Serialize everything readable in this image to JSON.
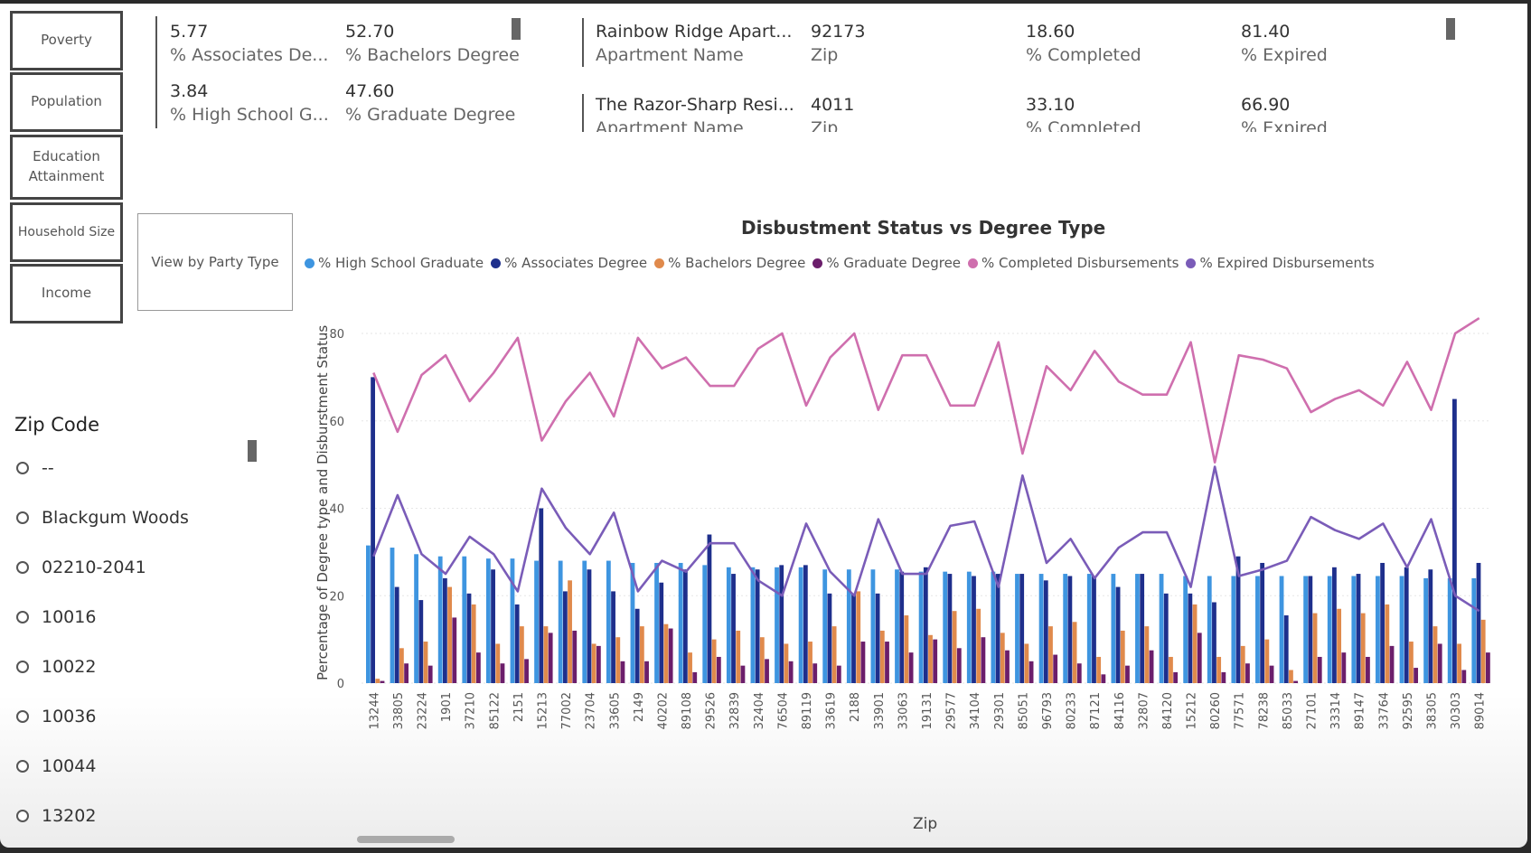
{
  "nav_buttons": [
    {
      "label": "Poverty"
    },
    {
      "label": "Population"
    },
    {
      "label": "Education Attainment"
    },
    {
      "label": "Household Size"
    },
    {
      "label": "Income"
    }
  ],
  "party_button": {
    "label": "View by Party Type"
  },
  "edu_card": [
    {
      "value": "5.77",
      "label": "% Associates De..."
    },
    {
      "value": "52.70",
      "label": "% Bachelors Degree"
    },
    {
      "value": "3.84",
      "label": "% High School G..."
    },
    {
      "value": "47.60",
      "label": "% Graduate Degree"
    }
  ],
  "apt_card": {
    "rows": [
      {
        "name": "Rainbow Ridge Apart...",
        "name_label": "Apartment Name",
        "zip": "92173",
        "zip_label": "Zip",
        "completed": "18.60",
        "completed_label": "% Completed",
        "expired": "81.40",
        "expired_label": "% Expired"
      },
      {
        "name": "The Razor-Sharp Resi...",
        "name_label": "Apartment Name",
        "zip": "4011",
        "zip_label": "Zip",
        "completed": "33.10",
        "completed_label": "% Completed",
        "expired": "66.90",
        "expired_label": "% Expired"
      }
    ]
  },
  "zip_filter": {
    "title": "Zip Code",
    "items": [
      "--",
      "Blackgum Woods",
      "02210-2041",
      "10016",
      "10022",
      "10036",
      "10044",
      "13202"
    ]
  },
  "colors": {
    "hs": "#3e95e0",
    "assoc": "#1e2f8c",
    "bach": "#e08a4c",
    "grad": "#6b1e6b",
    "completed": "#cf6fae",
    "expired": "#7a5cb8"
  },
  "chart_data": {
    "type": "bar+line",
    "title": "Disbustment Status vs Degree Type",
    "xlabel": "Zip",
    "ylabel": "Percentage of Degree type and Disburstment Status",
    "ylim": [
      0,
      80
    ],
    "yticks": [
      0,
      20,
      40,
      60,
      80
    ],
    "categories": [
      "13244",
      "33805",
      "23224",
      "1901",
      "37210",
      "85122",
      "2151",
      "15213",
      "77002",
      "23704",
      "33605",
      "2149",
      "40202",
      "89108",
      "29526",
      "32839",
      "32404",
      "76504",
      "89119",
      "33619",
      "2188",
      "33901",
      "33063",
      "19131",
      "29577",
      "34104",
      "29301",
      "85051",
      "96793",
      "80233",
      "87121",
      "84116",
      "32807",
      "84120",
      "15212",
      "80260",
      "77571",
      "78238",
      "85033",
      "27101",
      "33314",
      "89147",
      "33764",
      "92595",
      "38305",
      "30303",
      "89014"
    ],
    "series": [
      {
        "name": "% High School Graduate",
        "kind": "bar",
        "values": [
          31.5,
          31,
          29.5,
          29,
          29,
          28.5,
          28.5,
          28,
          28,
          28,
          28,
          27.5,
          27.5,
          27.5,
          27,
          26.5,
          26.5,
          26.5,
          26.5,
          26,
          26,
          26,
          26,
          25.5,
          25.5,
          25.5,
          25.5,
          25,
          25,
          25,
          25,
          25,
          25,
          25,
          24.5,
          24.5,
          24.5,
          24.5,
          24.5,
          24.5,
          24.5,
          24.5,
          24.5,
          24.5,
          24,
          24,
          24
        ]
      },
      {
        "name": "% Associates Degree",
        "kind": "bar",
        "values": [
          70,
          22,
          19,
          24,
          20.5,
          26,
          18,
          40,
          21,
          26,
          21,
          17,
          23,
          26,
          34,
          25,
          26,
          27,
          27,
          20.5,
          20.5,
          20.5,
          25.5,
          26.5,
          25,
          24.5,
          25,
          25,
          23.5,
          24.5,
          24.5,
          22,
          25,
          20.5,
          20.5,
          18.5,
          29,
          27.5,
          15.5,
          24.5,
          26.5,
          25,
          27.5,
          26.5,
          26,
          65,
          27.5
        ]
      },
      {
        "name": "% Bachelors Degree",
        "kind": "bar",
        "values": [
          1,
          8,
          9.5,
          22,
          18,
          9,
          13,
          13,
          23.5,
          9,
          10.5,
          13,
          13.5,
          7,
          10,
          12,
          10.5,
          9,
          9.5,
          13,
          21,
          12,
          15.5,
          11,
          16.5,
          17,
          11.5,
          9,
          13,
          14,
          6,
          12,
          13,
          6,
          18,
          6,
          8.5,
          10,
          3,
          16,
          17,
          16,
          18,
          9.5,
          13,
          9,
          14.5
        ]
      },
      {
        "name": "% Graduate Degree",
        "kind": "bar",
        "values": [
          0.5,
          4.5,
          4,
          15,
          7,
          4.5,
          5.5,
          11.5,
          12,
          8.5,
          5,
          5,
          12.5,
          2.5,
          6,
          4,
          5.5,
          5,
          4.5,
          4,
          9.5,
          9.5,
          7,
          10,
          8,
          10.5,
          7.5,
          5,
          6.5,
          4.5,
          2,
          4,
          7.5,
          2.5,
          11.5,
          2.5,
          4.5,
          4,
          0.5,
          6,
          7,
          6,
          8.5,
          3.5,
          9,
          3,
          7
        ]
      },
      {
        "name": "% Completed Disbursements",
        "kind": "line",
        "values": [
          71,
          57.5,
          70.5,
          75,
          64.5,
          71,
          79,
          55.5,
          64.5,
          71,
          61,
          79,
          72,
          74.5,
          68,
          68,
          76.5,
          80,
          63.5,
          74.5,
          80,
          62.5,
          75,
          75,
          63.5,
          63.5,
          78,
          52.5,
          72.5,
          67,
          76,
          69,
          66,
          66,
          78,
          50.5,
          75,
          74,
          72,
          62,
          65,
          67,
          63.5,
          73.5,
          62.5,
          80,
          83.5
        ]
      },
      {
        "name": "% Expired Disbursements",
        "kind": "line",
        "values": [
          29,
          43,
          29.5,
          25,
          33.5,
          29.5,
          21,
          44.5,
          35.5,
          29.5,
          39,
          21,
          28,
          25.5,
          32,
          32,
          23.5,
          20,
          36.5,
          25.5,
          20,
          37.5,
          25,
          25,
          36,
          37,
          22,
          47.5,
          27.5,
          33,
          24,
          31,
          34.5,
          34.5,
          22,
          49.5,
          24.5,
          26,
          28,
          38,
          35,
          33,
          36.5,
          26.5,
          37.5,
          20,
          16.5
        ]
      }
    ]
  },
  "zip_title_text": "Zip"
}
